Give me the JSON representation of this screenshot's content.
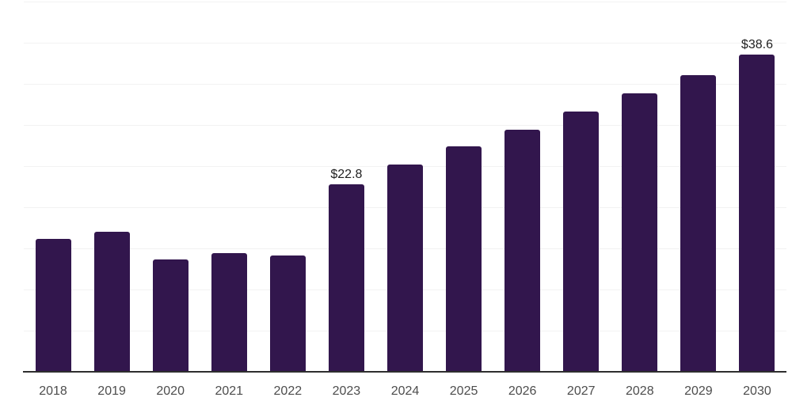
{
  "chart_data": {
    "type": "bar",
    "title": "",
    "xlabel": "",
    "ylabel": "",
    "categories": [
      "2018",
      "2019",
      "2020",
      "2021",
      "2022",
      "2023",
      "2024",
      "2025",
      "2026",
      "2027",
      "2028",
      "2029",
      "2030"
    ],
    "values": [
      16.2,
      17.0,
      13.7,
      14.4,
      14.1,
      22.8,
      25.2,
      27.4,
      29.4,
      31.6,
      33.8,
      36.1,
      38.6
    ],
    "value_labels": [
      null,
      null,
      null,
      null,
      null,
      "$22.8",
      null,
      null,
      null,
      null,
      null,
      null,
      "$38.6"
    ],
    "ylim": [
      0,
      45
    ],
    "gridline_step": 5,
    "grid": "horizontal-only",
    "legend_position": "none",
    "y_tick_labels_shown": false,
    "colors": {
      "bar": "#32164d",
      "axis_line": "#2e2e2e",
      "gridline": "#f2f2f2",
      "tick_label": "#4d4d4d",
      "value_label": "#1f1f1f",
      "background": "#ffffff"
    }
  }
}
